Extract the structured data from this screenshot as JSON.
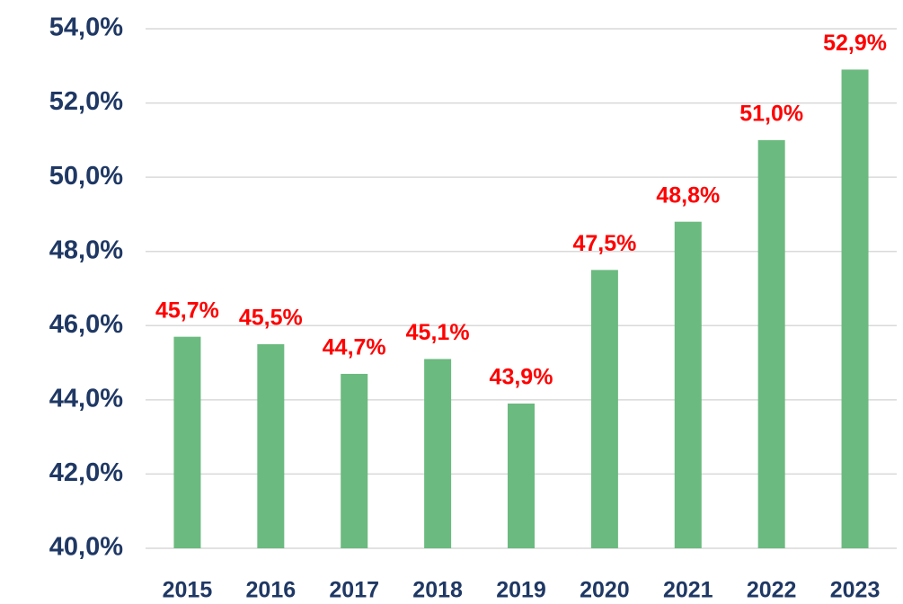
{
  "chart_data": {
    "type": "bar",
    "categories": [
      "2015",
      "2016",
      "2017",
      "2018",
      "2019",
      "2020",
      "2021",
      "2022",
      "2023"
    ],
    "values": [
      45.7,
      45.5,
      44.7,
      45.1,
      43.9,
      47.5,
      48.8,
      51.0,
      52.9
    ],
    "value_labels": [
      "45,7%",
      "45,5%",
      "44,7%",
      "45,1%",
      "43,9%",
      "47,5%",
      "48,8%",
      "51,0%",
      "52,9%"
    ],
    "color": "#6bba7f",
    "label_color": "#ff0000",
    "ylim": [
      40,
      54
    ],
    "yticks": [
      {
        "value": 40,
        "label": "40,0%"
      },
      {
        "value": 42,
        "label": "42,0%"
      },
      {
        "value": 44,
        "label": "44,0%"
      },
      {
        "value": 46,
        "label": "46,0%"
      },
      {
        "value": 48,
        "label": "48,0%"
      },
      {
        "value": 50,
        "label": "50,0%"
      },
      {
        "value": 52,
        "label": "52,0%"
      },
      {
        "value": 54,
        "label": "54,0%"
      }
    ],
    "grid": true
  }
}
